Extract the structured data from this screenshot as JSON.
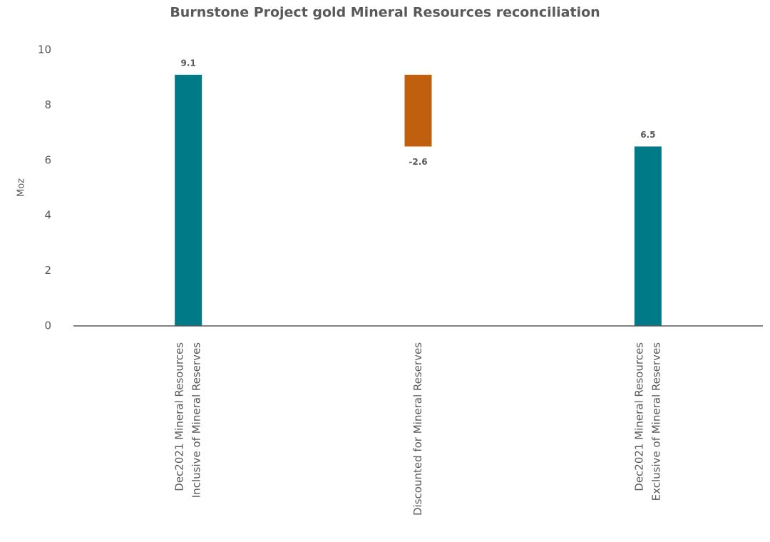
{
  "chart_data": {
    "type": "waterfall",
    "title": "Burnstone Project gold Mineral Resources reconciliation",
    "y_label": "Moz",
    "categories": [
      [
        "Dec2021 Mineral Resources",
        "Inclusive of Mineral Reserves"
      ],
      [
        "Discounted for Mineral Reserves"
      ],
      [
        "Dec2021 Mineral Resources",
        "Exclusive of Mineral Reserves"
      ]
    ],
    "values": [
      9.1,
      -2.6,
      6.5
    ],
    "measure": [
      "absolute",
      "relative",
      "total"
    ],
    "colors": [
      "#007a87",
      "#c0600f",
      "#007a87"
    ],
    "ylim": [
      0,
      10
    ],
    "yticks": [
      0,
      2,
      4,
      6,
      8,
      10
    ],
    "grid": false
  }
}
